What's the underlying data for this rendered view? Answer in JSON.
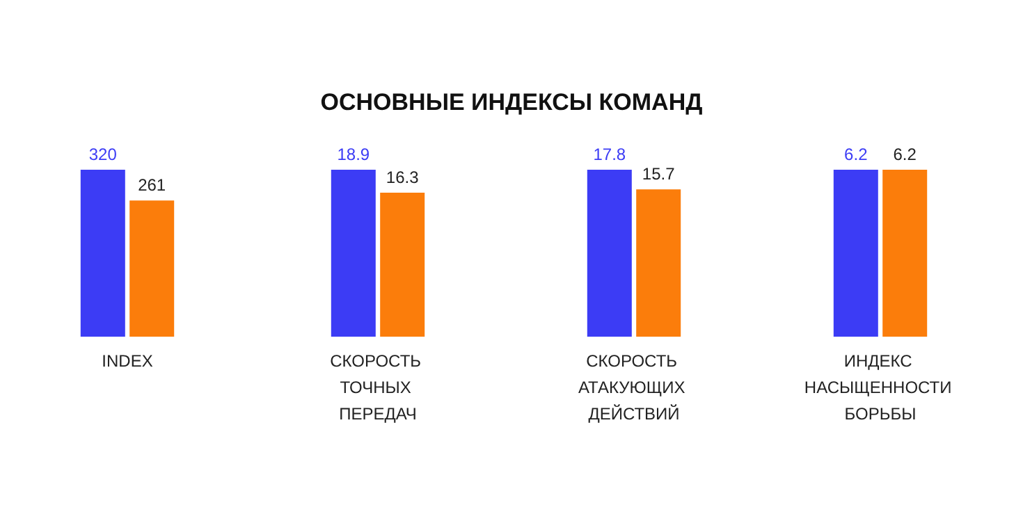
{
  "chart_data": [
    {
      "type": "bar",
      "categories": [
        "INDEX"
      ],
      "series": [
        {
          "color": "#3c3cf5",
          "values": [
            320
          ]
        },
        {
          "color": "#fb7d0b",
          "values": [
            261
          ]
        }
      ],
      "data_labels": true
    },
    {
      "type": "bar",
      "categories": [
        "СКОРОСТЬ ТОЧНЫХ ПЕРЕДАЧ"
      ],
      "series": [
        {
          "color": "#3c3cf5",
          "values": [
            18.9
          ]
        },
        {
          "color": "#fb7d0b",
          "values": [
            16.3
          ]
        }
      ],
      "data_labels": true
    },
    {
      "type": "bar",
      "title": "ОСНОВНЫЕ ИНДЕКСЫ КОМАНД",
      "categories": [
        "СКОРОСТЬ АТАКУЮЩИХ ДЕЙСТВИЙ"
      ],
      "series": [
        {
          "color": "#3c3cf5",
          "values": [
            17.8
          ]
        },
        {
          "color": "#fb7d0b",
          "values": [
            15.7
          ]
        }
      ],
      "data_labels": true
    },
    {
      "type": "bar",
      "categories": [
        "ИНДЕКС НАСЫЩЕННОСТИ БОРЬБЫ"
      ],
      "series": [
        {
          "color": "#3c3cf5",
          "values": [
            6.2
          ]
        },
        {
          "color": "#fb7d0b",
          "values": [
            6.2
          ]
        }
      ],
      "data_labels": true
    }
  ]
}
